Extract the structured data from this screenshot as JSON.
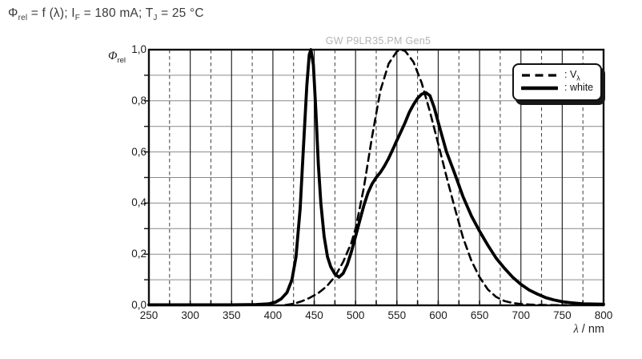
{
  "title": {
    "parts": [
      {
        "text": "Φ",
        "sub": "rel"
      },
      {
        "text": " = f (λ); I",
        "sub": "F"
      },
      {
        "text": " = 180 mA; T",
        "sub": "J"
      },
      {
        "text": " = 25 °C",
        "sub": ""
      }
    ]
  },
  "watermark": "GW P9LR35.PM Gen5",
  "chart_data": {
    "type": "line",
    "grid": "on",
    "x_axis": {
      "label_italic": "λ",
      "label_rest": " / nm",
      "min": 250,
      "max": 800,
      "major_tick_step": 50,
      "minor_tick_step": 25,
      "ticks": [
        250,
        300,
        350,
        400,
        450,
        500,
        550,
        600,
        650,
        700,
        750,
        800
      ]
    },
    "y_axis": {
      "label_italic": "Φ",
      "label_sub": "rel",
      "min": 0,
      "max": 1,
      "minor_grid_step": 0.1,
      "ticks": [
        {
          "v": 1.0,
          "label": "1,0"
        },
        {
          "v": 0.8,
          "label": "0,8"
        },
        {
          "v": 0.6,
          "label": "0,6"
        },
        {
          "v": 0.4,
          "label": "0,4"
        },
        {
          "v": 0.2,
          "label": "0,2"
        },
        {
          "v": 0.0,
          "label": "0,0"
        }
      ]
    },
    "legend": {
      "position": "top-right",
      "items": [
        {
          "style": "dashed",
          "prefix": ": V",
          "sub": "λ"
        },
        {
          "style": "solid",
          "prefix": ": white",
          "sub": ""
        }
      ]
    },
    "colors": {
      "curve": "#000000",
      "grid_h": "#8a8a8a",
      "grid_v_major": "#262626",
      "grid_v_minor": "#3d3d3d",
      "frame": "#111111",
      "watermark": "#b4b4b4"
    },
    "series": [
      {
        "name": "V_lambda",
        "line": "dashed",
        "points": [
          [
            415,
            0.001
          ],
          [
            425,
            0.006
          ],
          [
            435,
            0.016
          ],
          [
            445,
            0.03
          ],
          [
            455,
            0.048
          ],
          [
            465,
            0.074
          ],
          [
            475,
            0.112
          ],
          [
            485,
            0.17
          ],
          [
            495,
            0.245
          ],
          [
            500,
            0.3
          ],
          [
            510,
            0.46
          ],
          [
            520,
            0.66
          ],
          [
            530,
            0.84
          ],
          [
            540,
            0.945
          ],
          [
            550,
            0.993
          ],
          [
            555,
            1.0
          ],
          [
            560,
            0.995
          ],
          [
            570,
            0.952
          ],
          [
            580,
            0.87
          ],
          [
            590,
            0.757
          ],
          [
            600,
            0.631
          ],
          [
            610,
            0.503
          ],
          [
            620,
            0.381
          ],
          [
            630,
            0.265
          ],
          [
            640,
            0.175
          ],
          [
            650,
            0.11
          ],
          [
            660,
            0.062
          ],
          [
            670,
            0.033
          ],
          [
            680,
            0.017
          ],
          [
            690,
            0.009
          ],
          [
            700,
            0.005
          ],
          [
            710,
            0.003
          ],
          [
            720,
            0.002
          ],
          [
            735,
            0.001
          ],
          [
            755,
            0.0005
          ]
        ]
      },
      {
        "name": "white",
        "line": "solid",
        "points": [
          [
            250,
            0.002
          ],
          [
            300,
            0.002
          ],
          [
            350,
            0.002
          ],
          [
            380,
            0.003
          ],
          [
            395,
            0.006
          ],
          [
            403,
            0.012
          ],
          [
            410,
            0.025
          ],
          [
            417,
            0.05
          ],
          [
            423,
            0.1
          ],
          [
            428,
            0.19
          ],
          [
            433,
            0.38
          ],
          [
            437,
            0.62
          ],
          [
            441,
            0.86
          ],
          [
            444,
            0.98
          ],
          [
            446,
            1.0
          ],
          [
            449,
            0.94
          ],
          [
            452,
            0.76
          ],
          [
            455,
            0.55
          ],
          [
            458,
            0.4
          ],
          [
            462,
            0.27
          ],
          [
            466,
            0.19
          ],
          [
            470,
            0.15
          ],
          [
            475,
            0.122
          ],
          [
            480,
            0.11
          ],
          [
            485,
            0.125
          ],
          [
            490,
            0.16
          ],
          [
            495,
            0.21
          ],
          [
            500,
            0.27
          ],
          [
            505,
            0.33
          ],
          [
            510,
            0.39
          ],
          [
            515,
            0.44
          ],
          [
            520,
            0.475
          ],
          [
            525,
            0.5
          ],
          [
            530,
            0.52
          ],
          [
            535,
            0.545
          ],
          [
            540,
            0.575
          ],
          [
            545,
            0.61
          ],
          [
            550,
            0.645
          ],
          [
            555,
            0.68
          ],
          [
            560,
            0.715
          ],
          [
            565,
            0.755
          ],
          [
            570,
            0.785
          ],
          [
            575,
            0.81
          ],
          [
            580,
            0.826
          ],
          [
            585,
            0.832
          ],
          [
            590,
            0.82
          ],
          [
            595,
            0.775
          ],
          [
            600,
            0.715
          ],
          [
            610,
            0.6
          ],
          [
            620,
            0.515
          ],
          [
            630,
            0.425
          ],
          [
            640,
            0.35
          ],
          [
            650,
            0.29
          ],
          [
            660,
            0.235
          ],
          [
            670,
            0.185
          ],
          [
            680,
            0.145
          ],
          [
            690,
            0.11
          ],
          [
            700,
            0.082
          ],
          [
            710,
            0.06
          ],
          [
            720,
            0.044
          ],
          [
            730,
            0.03
          ],
          [
            740,
            0.021
          ],
          [
            750,
            0.014
          ],
          [
            760,
            0.01
          ],
          [
            775,
            0.006
          ],
          [
            800,
            0.004
          ]
        ]
      }
    ]
  }
}
